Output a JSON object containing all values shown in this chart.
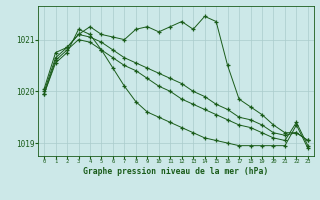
{
  "title": "Graphe pression niveau de la mer (hPa)",
  "bg_color": "#cce8e8",
  "grid_color": "#aacccc",
  "line_color": "#1a5c1a",
  "xlim": [
    -0.5,
    23.5
  ],
  "ylim": [
    1018.75,
    1021.65
  ],
  "yticks": [
    1019,
    1020,
    1021
  ],
  "xtick_labels": [
    "0",
    "1",
    "2",
    "3",
    "4",
    "5",
    "6",
    "7",
    "8",
    "9",
    "10",
    "11",
    "12",
    "13",
    "14",
    "15",
    "16",
    "17",
    "18",
    "19",
    "20",
    "21",
    "22",
    "23"
  ],
  "series": [
    [
      1020.05,
      1020.75,
      1020.85,
      1021.1,
      1021.25,
      1021.1,
      1021.05,
      1021.0,
      1021.2,
      1021.25,
      1021.15,
      1021.25,
      1021.35,
      1021.2,
      1021.45,
      1021.35,
      1020.5,
      1019.85,
      1019.7,
      1019.55,
      1019.35,
      1019.2,
      1019.2,
      1019.05
    ],
    [
      1020.0,
      1020.65,
      1020.85,
      1021.1,
      1021.05,
      1020.95,
      1020.8,
      1020.65,
      1020.55,
      1020.45,
      1020.35,
      1020.25,
      1020.15,
      1020.0,
      1019.9,
      1019.75,
      1019.65,
      1019.5,
      1019.45,
      1019.35,
      1019.2,
      1019.15,
      1019.2,
      1019.05
    ],
    [
      1019.95,
      1020.6,
      1020.8,
      1021.0,
      1020.95,
      1020.8,
      1020.65,
      1020.5,
      1020.4,
      1020.25,
      1020.1,
      1020.0,
      1019.85,
      1019.75,
      1019.65,
      1019.55,
      1019.45,
      1019.35,
      1019.3,
      1019.2,
      1019.1,
      1019.05,
      1019.4,
      1018.95
    ],
    [
      1019.95,
      1020.55,
      1020.75,
      1021.2,
      1021.1,
      1020.8,
      1020.45,
      1020.1,
      1019.8,
      1019.6,
      1019.5,
      1019.4,
      1019.3,
      1019.2,
      1019.1,
      1019.05,
      1019.0,
      1018.95,
      1018.95,
      1018.95,
      1018.95,
      1018.95,
      1019.35,
      1018.9
    ]
  ]
}
